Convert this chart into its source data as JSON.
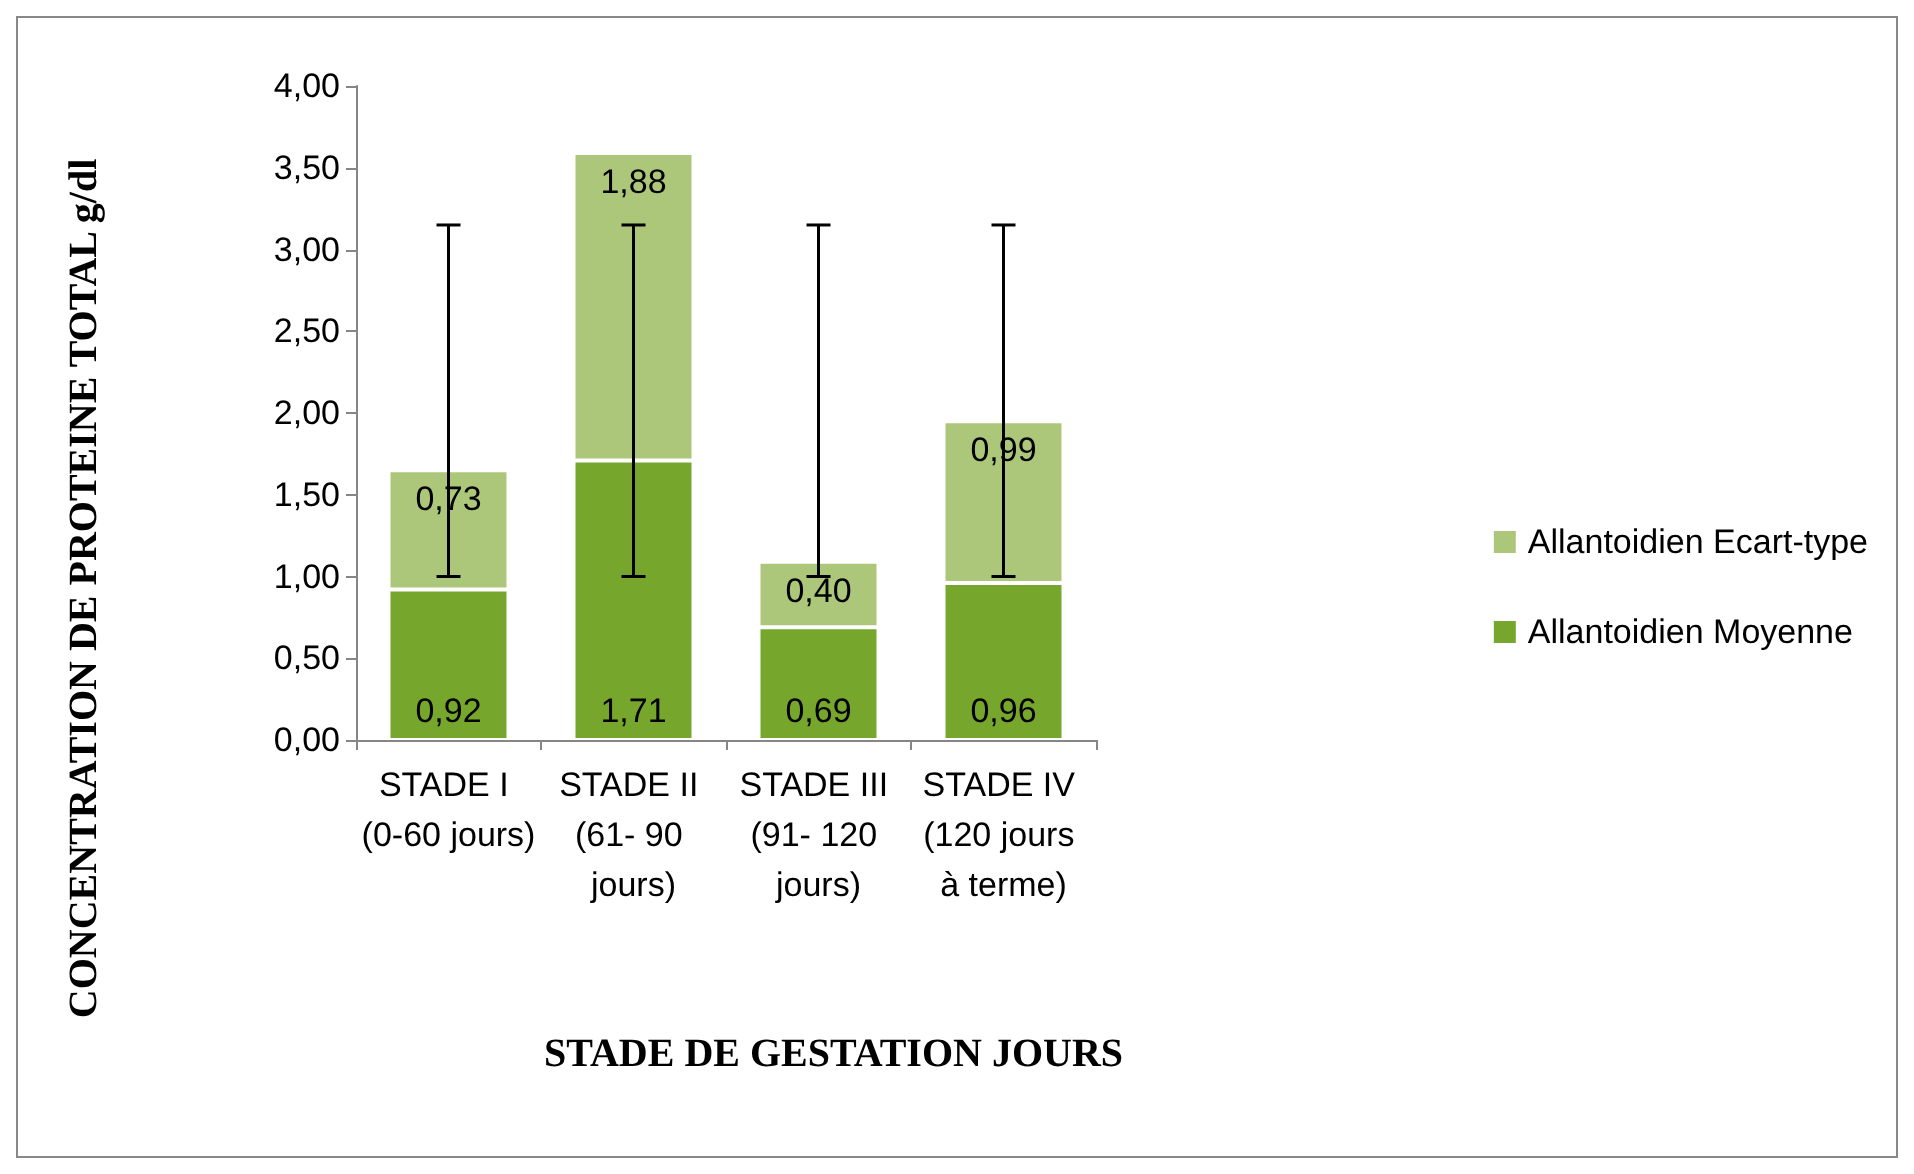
{
  "chart_data": {
    "type": "bar",
    "stacked": true,
    "ylabel": "CONCENTRATION DE PROTEINE TOTAL g/dl",
    "xlabel": "STADE DE GESTATION JOURS",
    "categories": [
      "STADE I (0-60 jours)",
      "STADE II (61- 90 jours)",
      "STADE III (91- 120 jours)",
      "STADE IV (120 jours à terme)"
    ],
    "series": [
      {
        "name": "Allantoidien Moyenne",
        "color": "#76a72c",
        "values": [
          0.92,
          1.71,
          0.69,
          0.96
        ],
        "value_labels": [
          "0,92",
          "1,71",
          "0,69",
          "0,96"
        ],
        "errors": [
          [
            1.0,
            3.15
          ],
          [
            1.0,
            3.15
          ],
          [
            1.0,
            3.15
          ],
          [
            1.0,
            3.15
          ]
        ]
      },
      {
        "name": "Allantoidien Ecart-type",
        "color": "#adc77a",
        "values": [
          0.73,
          1.88,
          0.4,
          0.99
        ],
        "value_labels": [
          "0,73",
          "1,88",
          "0,40",
          "0,99"
        ]
      }
    ],
    "ylim": [
      0,
      4
    ],
    "yticks": [
      {
        "value": 0,
        "label": "0,00"
      },
      {
        "value": 0.5,
        "label": "0,50"
      },
      {
        "value": 1,
        "label": "1,00"
      },
      {
        "value": 1.5,
        "label": "1,50"
      },
      {
        "value": 2,
        "label": "2,00"
      },
      {
        "value": 2.5,
        "label": "2,50"
      },
      {
        "value": 3,
        "label": "3,00"
      },
      {
        "value": 3.5,
        "label": "3,50"
      },
      {
        "value": 4,
        "label": "4,00"
      }
    ],
    "grid": false,
    "legend": "right"
  }
}
